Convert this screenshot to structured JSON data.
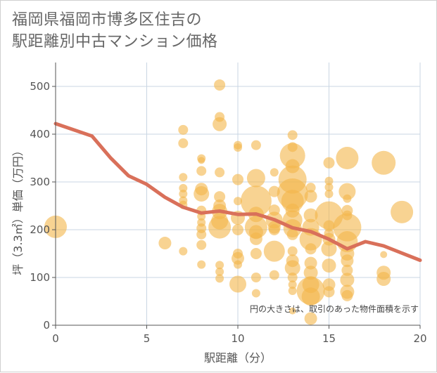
{
  "title_lines": [
    "福岡県福岡市博多区住吉の",
    "駅距離別中古マンション価格"
  ],
  "chart_data": {
    "type": "scatter",
    "title": "福岡県福岡市博多区住吉の駅距離別中古マンション価格",
    "xlabel": "駅距離（分）",
    "ylabel": "坪（3.3㎡）単価（万円）",
    "xlim": [
      0,
      20
    ],
    "ylim": [
      0,
      520
    ],
    "xticks": [
      0,
      5,
      10,
      15,
      20
    ],
    "yticks": [
      0,
      100,
      200,
      300,
      400,
      500
    ],
    "grid": true,
    "note": "円の大きさは、取引のあった物件面積を示す",
    "colors": {
      "bubble": "#f3b54a",
      "line": "#d9705a",
      "grid": "#c9d6e3",
      "axis": "#555555"
    },
    "bubbles": [
      {
        "x": 0,
        "y": 206,
        "s": 16
      },
      {
        "x": 6,
        "y": 172,
        "s": 9
      },
      {
        "x": 7,
        "y": 409,
        "s": 7
      },
      {
        "x": 7,
        "y": 381,
        "s": 7
      },
      {
        "x": 7,
        "y": 310,
        "s": 6
      },
      {
        "x": 7,
        "y": 287,
        "s": 6
      },
      {
        "x": 7,
        "y": 275,
        "s": 6
      },
      {
        "x": 7,
        "y": 261,
        "s": 6
      },
      {
        "x": 7,
        "y": 252,
        "s": 6
      },
      {
        "x": 7,
        "y": 155,
        "s": 6
      },
      {
        "x": 8,
        "y": 349,
        "s": 6
      },
      {
        "x": 8,
        "y": 345,
        "s": 5
      },
      {
        "x": 8,
        "y": 323,
        "s": 7
      },
      {
        "x": 8,
        "y": 285,
        "s": 9
      },
      {
        "x": 8,
        "y": 275,
        "s": 11
      },
      {
        "x": 8,
        "y": 240,
        "s": 7
      },
      {
        "x": 8,
        "y": 228,
        "s": 6
      },
      {
        "x": 8,
        "y": 215,
        "s": 6
      },
      {
        "x": 8,
        "y": 203,
        "s": 7
      },
      {
        "x": 8,
        "y": 190,
        "s": 7
      },
      {
        "x": 8,
        "y": 168,
        "s": 7
      },
      {
        "x": 8,
        "y": 127,
        "s": 6
      },
      {
        "x": 9,
        "y": 503,
        "s": 8
      },
      {
        "x": 9,
        "y": 436,
        "s": 7
      },
      {
        "x": 9,
        "y": 421,
        "s": 10
      },
      {
        "x": 9,
        "y": 320,
        "s": 7
      },
      {
        "x": 9,
        "y": 269,
        "s": 8
      },
      {
        "x": 9,
        "y": 250,
        "s": 9
      },
      {
        "x": 9,
        "y": 238,
        "s": 11
      },
      {
        "x": 9,
        "y": 218,
        "s": 12
      },
      {
        "x": 9,
        "y": 205,
        "s": 16
      },
      {
        "x": 9,
        "y": 126,
        "s": 6
      },
      {
        "x": 9,
        "y": 112,
        "s": 6
      },
      {
        "x": 9,
        "y": 98,
        "s": 6
      },
      {
        "x": 10,
        "y": 377,
        "s": 6
      },
      {
        "x": 10,
        "y": 372,
        "s": 6
      },
      {
        "x": 10,
        "y": 305,
        "s": 8
      },
      {
        "x": 10,
        "y": 260,
        "s": 6
      },
      {
        "x": 10,
        "y": 225,
        "s": 10
      },
      {
        "x": 10,
        "y": 200,
        "s": 8
      },
      {
        "x": 10,
        "y": 150,
        "s": 7
      },
      {
        "x": 10,
        "y": 140,
        "s": 9
      },
      {
        "x": 10,
        "y": 127,
        "s": 6
      },
      {
        "x": 10,
        "y": 86,
        "s": 12
      },
      {
        "x": 11,
        "y": 377,
        "s": 7
      },
      {
        "x": 11,
        "y": 308,
        "s": 13
      },
      {
        "x": 11,
        "y": 260,
        "s": 22
      },
      {
        "x": 11,
        "y": 232,
        "s": 11
      },
      {
        "x": 11,
        "y": 205,
        "s": 16
      },
      {
        "x": 11,
        "y": 195,
        "s": 10
      },
      {
        "x": 11,
        "y": 181,
        "s": 9
      },
      {
        "x": 11,
        "y": 150,
        "s": 8
      },
      {
        "x": 11,
        "y": 100,
        "s": 7
      },
      {
        "x": 11,
        "y": 67,
        "s": 6
      },
      {
        "x": 12,
        "y": 320,
        "s": 6
      },
      {
        "x": 12,
        "y": 280,
        "s": 8
      },
      {
        "x": 12,
        "y": 241,
        "s": 8
      },
      {
        "x": 12,
        "y": 220,
        "s": 12
      },
      {
        "x": 12,
        "y": 205,
        "s": 9
      },
      {
        "x": 12,
        "y": 200,
        "s": 8
      },
      {
        "x": 12,
        "y": 155,
        "s": 15
      },
      {
        "x": 12,
        "y": 105,
        "s": 7
      },
      {
        "x": 13,
        "y": 398,
        "s": 7
      },
      {
        "x": 13,
        "y": 373,
        "s": 7
      },
      {
        "x": 13,
        "y": 355,
        "s": 18
      },
      {
        "x": 13,
        "y": 333,
        "s": 10
      },
      {
        "x": 13,
        "y": 305,
        "s": 20
      },
      {
        "x": 13,
        "y": 275,
        "s": 22
      },
      {
        "x": 13,
        "y": 260,
        "s": 16
      },
      {
        "x": 13,
        "y": 240,
        "s": 10
      },
      {
        "x": 13,
        "y": 220,
        "s": 14
      },
      {
        "x": 13,
        "y": 203,
        "s": 13
      },
      {
        "x": 13,
        "y": 190,
        "s": 8
      },
      {
        "x": 13,
        "y": 155,
        "s": 7
      },
      {
        "x": 13,
        "y": 135,
        "s": 9
      },
      {
        "x": 13,
        "y": 120,
        "s": 11
      },
      {
        "x": 13,
        "y": 100,
        "s": 7
      },
      {
        "x": 13,
        "y": 85,
        "s": 6
      },
      {
        "x": 13,
        "y": 72,
        "s": 6
      },
      {
        "x": 13,
        "y": 30,
        "s": 5
      },
      {
        "x": 14,
        "y": 288,
        "s": 7
      },
      {
        "x": 14,
        "y": 270,
        "s": 9
      },
      {
        "x": 14,
        "y": 230,
        "s": 10
      },
      {
        "x": 14,
        "y": 205,
        "s": 12
      },
      {
        "x": 14,
        "y": 180,
        "s": 16
      },
      {
        "x": 14,
        "y": 160,
        "s": 8
      },
      {
        "x": 14,
        "y": 130,
        "s": 9
      },
      {
        "x": 14,
        "y": 110,
        "s": 10
      },
      {
        "x": 14,
        "y": 85,
        "s": 12
      },
      {
        "x": 14,
        "y": 72,
        "s": 20
      },
      {
        "x": 14,
        "y": 60,
        "s": 13
      },
      {
        "x": 14,
        "y": 14,
        "s": 9
      },
      {
        "x": 15,
        "y": 340,
        "s": 8
      },
      {
        "x": 15,
        "y": 302,
        "s": 6
      },
      {
        "x": 15,
        "y": 289,
        "s": 6
      },
      {
        "x": 15,
        "y": 275,
        "s": 6
      },
      {
        "x": 15,
        "y": 230,
        "s": 20
      },
      {
        "x": 15,
        "y": 208,
        "s": 8
      },
      {
        "x": 15,
        "y": 192,
        "s": 7
      },
      {
        "x": 15,
        "y": 180,
        "s": 9
      },
      {
        "x": 15,
        "y": 160,
        "s": 11
      },
      {
        "x": 15,
        "y": 125,
        "s": 10
      },
      {
        "x": 15,
        "y": 85,
        "s": 9
      },
      {
        "x": 15,
        "y": 70,
        "s": 8
      },
      {
        "x": 16,
        "y": 350,
        "s": 16
      },
      {
        "x": 16,
        "y": 280,
        "s": 12
      },
      {
        "x": 16,
        "y": 265,
        "s": 6
      },
      {
        "x": 16,
        "y": 240,
        "s": 8
      },
      {
        "x": 16,
        "y": 230,
        "s": 7
      },
      {
        "x": 16,
        "y": 205,
        "s": 20
      },
      {
        "x": 16,
        "y": 175,
        "s": 15
      },
      {
        "x": 16,
        "y": 150,
        "s": 10
      },
      {
        "x": 16,
        "y": 135,
        "s": 9
      },
      {
        "x": 16,
        "y": 115,
        "s": 8
      },
      {
        "x": 16,
        "y": 95,
        "s": 10
      },
      {
        "x": 16,
        "y": 70,
        "s": 10
      },
      {
        "x": 16,
        "y": 62,
        "s": 8
      },
      {
        "x": 18,
        "y": 340,
        "s": 17
      },
      {
        "x": 18,
        "y": 148,
        "s": 5
      },
      {
        "x": 18,
        "y": 110,
        "s": 10
      },
      {
        "x": 18,
        "y": 97,
        "s": 10
      },
      {
        "x": 19,
        "y": 237,
        "s": 16
      }
    ],
    "trend_line": {
      "x": [
        0,
        2,
        3,
        4,
        5,
        6,
        7,
        8,
        9,
        10,
        11,
        12,
        13,
        14,
        15,
        16,
        17,
        18,
        19,
        20
      ],
      "y": [
        422,
        396,
        351,
        313,
        295,
        268,
        247,
        235,
        239,
        232,
        233,
        221,
        204,
        196,
        180,
        160,
        175,
        166,
        151,
        136
      ]
    }
  }
}
